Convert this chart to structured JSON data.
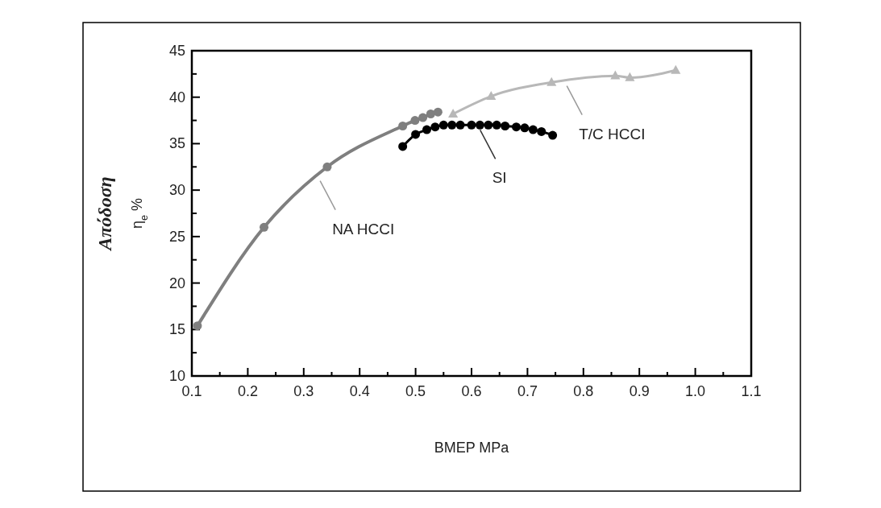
{
  "chart_data": {
    "type": "line",
    "xlabel": "BMEP  MPa",
    "ylabel": "Απόδοση\nη$_{e}$ %",
    "xlim": [
      0.1,
      1.1
    ],
    "xticks": [
      {
        "value": 0.1,
        "label": "0.1"
      },
      {
        "value": 0.15,
        "label": null
      },
      {
        "value": 0.2,
        "label": "0.2"
      },
      {
        "value": 0.25,
        "label": null
      },
      {
        "value": 0.3,
        "label": "0.3"
      },
      {
        "value": 0.35,
        "label": null
      },
      {
        "value": 0.4,
        "label": "0.4"
      },
      {
        "value": 0.45,
        "label": null
      },
      {
        "value": 0.5,
        "label": "0.5"
      },
      {
        "value": 0.55,
        "label": null
      },
      {
        "value": 0.6,
        "label": "0.6"
      },
      {
        "value": 0.65,
        "label": null
      },
      {
        "value": 0.7,
        "label": "0.7"
      },
      {
        "value": 0.75,
        "label": null
      },
      {
        "value": 0.8,
        "label": "0.8"
      },
      {
        "value": 0.85,
        "label": null
      },
      {
        "value": 0.9,
        "label": "0.9"
      },
      {
        "value": 0.95,
        "label": null
      },
      {
        "value": 1,
        "label": "1.0"
      },
      {
        "value": 1.05,
        "label": null
      },
      {
        "value": 1.1,
        "label": "1.1"
      }
    ],
    "ylim": [
      10,
      45
    ],
    "yticks": [
      10,
      {
        "value": 12.5,
        "label": null
      },
      15,
      {
        "value": 17.5,
        "label": null
      },
      20,
      {
        "value": 22.5,
        "label": null
      },
      25,
      {
        "value": 27.5,
        "label": null
      },
      30,
      {
        "value": 32.5,
        "label": null
      },
      35,
      {
        "value": 37.5,
        "label": null
      },
      40,
      {
        "value": 42.5,
        "label": null
      },
      45
    ],
    "grid": false,
    "series": [
      {
        "name": "NA HCCI",
        "color": "#7f7f7f",
        "marker": "circle",
        "x": [
          0.11,
          0.229,
          0.342,
          0.477,
          0.499,
          0.513,
          0.527,
          0.54
        ],
        "values": [
          15.4,
          26,
          32.5,
          36.9,
          37.5,
          37.8,
          38.2,
          38.4
        ]
      },
      {
        "name": "SI",
        "color": "#000000",
        "marker": "circle",
        "x": [
          0.477,
          0.5,
          0.52,
          0.535,
          0.55,
          0.565,
          0.58,
          0.6,
          0.615,
          0.63,
          0.645,
          0.66,
          0.68,
          0.695,
          0.71,
          0.725,
          0.745
        ],
        "values": [
          34.7,
          36,
          36.5,
          36.8,
          37,
          37,
          37,
          37,
          37,
          37,
          37,
          36.9,
          36.8,
          36.7,
          36.5,
          36.3,
          35.9
        ]
      },
      {
        "name": "T/C HCCI",
        "color": "#b8b8b8",
        "marker": "triangle",
        "x": [
          0.567,
          0.635,
          0.743,
          0.857,
          0.883,
          0.965
        ],
        "values": [
          38.2,
          40.1,
          41.6,
          42.3,
          42.1,
          42.9
        ]
      }
    ]
  }
}
